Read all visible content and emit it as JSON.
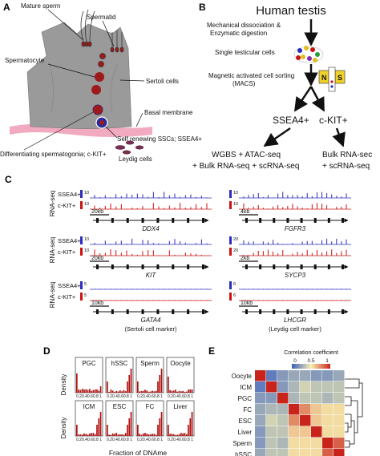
{
  "panels": {
    "A": {
      "letter": "A",
      "labels": {
        "mature_sperm": "Mature sperm",
        "spermatid": "Spermatid",
        "spermatocyte": "Spermatocyte",
        "sertoli": "Sertoli cells",
        "basal_membrane": "Basal membrane",
        "self_renewing": "Self renewing SSCs; SSEA4+",
        "differentiating": "Differentiating spermatogonia; c-KIT+",
        "leydig": "Leydig cells"
      },
      "colors": {
        "sertoli_cell": "#9a9a9a",
        "basal_membrane": "#f2aac0",
        "germ_cell": "#9e1a1a",
        "leydig_cell": "#7a2e52"
      }
    },
    "B": {
      "letter": "B",
      "title": "Human testis",
      "step1": "Mechanical dissociation &",
      "step1b": "Enzymatic digestion",
      "step2": "Single testicular cells",
      "step3": "Magnetic activated cell sorting",
      "step3b": "(MACS)",
      "magnet_n": "N",
      "magnet_s": "S",
      "fraction1": "SSEA4+",
      "fraction2": "c-KIT+",
      "assay1a": "WGBS + ATAC-seq",
      "assay1b": "+ Bulk RNA-seq + scRNA-seq",
      "assay2a": "Bulk RNA-sec",
      "assay2b": "+ scRNA-seq"
    },
    "C": {
      "letter": "C",
      "row_label": "RNA-seq",
      "track1": "SSEA4+",
      "track2": "c-KIT+",
      "colors": {
        "ssea4": "#2b2bbf",
        "ckit": "#cc1111"
      },
      "blocks": [
        {
          "scale_left": "10",
          "scale_right": "10",
          "bar_left": "20kb",
          "bar_right": "4kb",
          "gene_left": "DDX4",
          "gene_right": "FGFR3",
          "note_left": "",
          "note_right": ""
        },
        {
          "scale_left": "10",
          "scale_right": "20",
          "bar_left": "20kb",
          "bar_right": "2kb",
          "gene_left": "KIT",
          "gene_right": "SYCP3",
          "note_left": "",
          "note_right": ""
        },
        {
          "scale_left": "5",
          "scale_right": "6",
          "bar_left": "10kb",
          "bar_right": "10kb",
          "gene_left": "GATA4",
          "gene_right": "LHCGR",
          "note_left": "(Sertoli cell marker)",
          "note_right": "(Leydig cell marker)"
        }
      ]
    },
    "D": {
      "letter": "D",
      "ylabel": "Density",
      "xlabel": "Fraction of DNAme",
      "tick_labels": "0.20.40.60.8 1",
      "top_row": [
        "PGC",
        "hSSC",
        "Sperm",
        "Oocyte"
      ],
      "bottom_row": [
        "ICM",
        "ESC",
        "FC",
        "Liver"
      ],
      "colors": {
        "bars": "#b01010",
        "line": "#111111"
      }
    },
    "E": {
      "letter": "E",
      "legend_title": "Correlation coefficient",
      "legend_ticks": [
        "0",
        "0.5",
        "1"
      ],
      "samples": [
        "Oocyte",
        "ICM",
        "PGC",
        "FC",
        "ESC",
        "Liver",
        "Sperm",
        "hSSC"
      ],
      "colors": {
        "low": "#3b5fc0",
        "mid": "#f7f0b0",
        "high": "#c8241c"
      },
      "matrix": [
        [
          1.0,
          0.1,
          0.2,
          0.25,
          0.25,
          0.2,
          0.2,
          0.25
        ],
        [
          0.1,
          1.0,
          0.2,
          0.3,
          0.4,
          0.35,
          0.35,
          0.35
        ],
        [
          0.2,
          0.2,
          1.0,
          0.3,
          0.35,
          0.35,
          0.3,
          0.35
        ],
        [
          0.25,
          0.3,
          0.3,
          1.0,
          0.75,
          0.6,
          0.55,
          0.55
        ],
        [
          0.25,
          0.4,
          0.35,
          0.75,
          1.0,
          0.6,
          0.55,
          0.55
        ],
        [
          0.2,
          0.35,
          0.35,
          0.6,
          0.6,
          1.0,
          0.55,
          0.55
        ],
        [
          0.2,
          0.35,
          0.3,
          0.55,
          0.55,
          0.55,
          1.0,
          0.85
        ],
        [
          0.25,
          0.35,
          0.35,
          0.55,
          0.55,
          0.55,
          0.85,
          1.0
        ]
      ]
    }
  }
}
